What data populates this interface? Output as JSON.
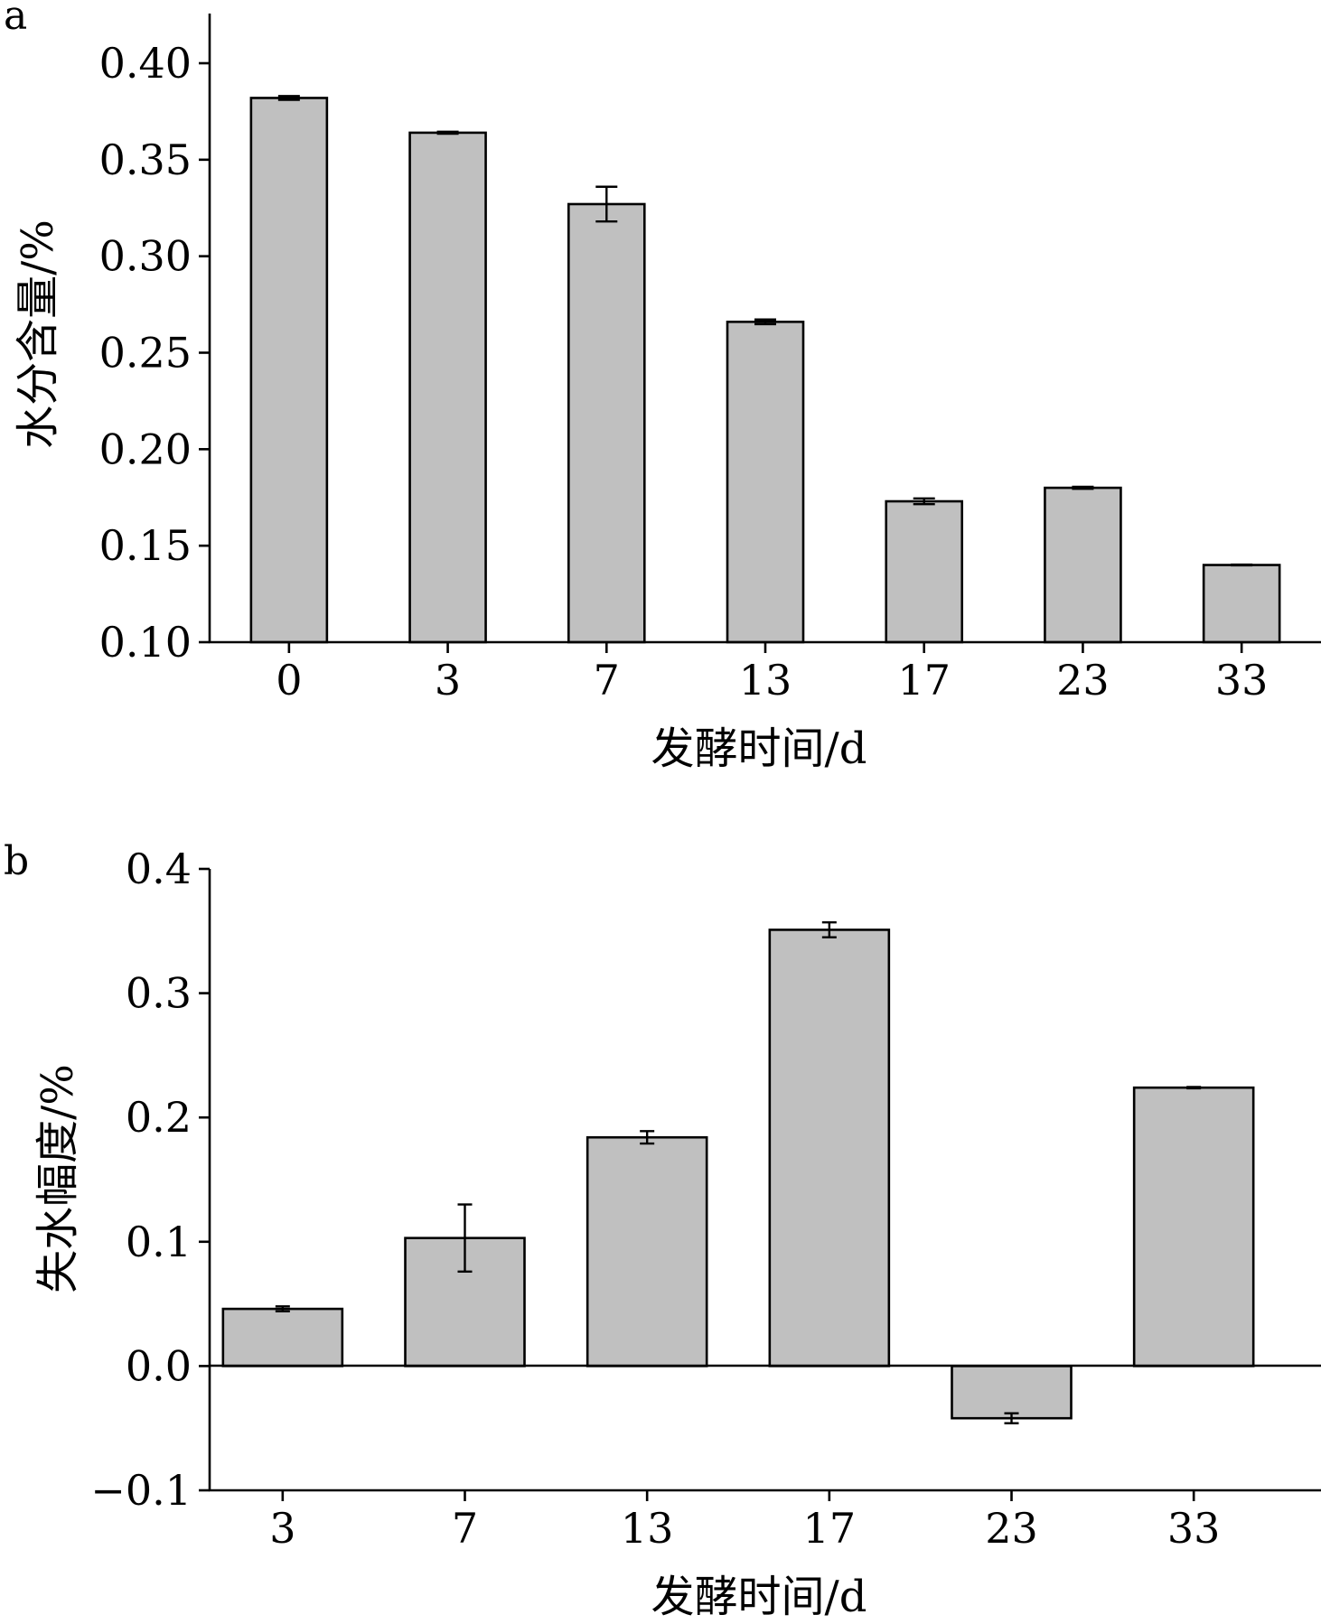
{
  "chart_data": [
    {
      "panel_label": "a",
      "type": "bar",
      "categories": [
        "0",
        "3",
        "7",
        "13",
        "17",
        "23",
        "33"
      ],
      "values": [
        0.382,
        0.364,
        0.327,
        0.266,
        0.173,
        0.18,
        0.14
      ],
      "errors": [
        0.001,
        0.0005,
        0.009,
        0.0012,
        0.0015,
        0.0005,
        0.0002
      ],
      "xlabel": "发酵时间/d",
      "ylabel": "水分含量/%",
      "ylim": [
        0.1,
        0.4
      ],
      "yticks": [
        "0.10",
        "0.15",
        "0.20",
        "0.25",
        "0.30",
        "0.35",
        "0.40"
      ],
      "bar_color": "#c0c0c0",
      "grid": false
    },
    {
      "panel_label": "b",
      "type": "bar",
      "categories": [
        "3",
        "7",
        "13",
        "17",
        "23",
        "33"
      ],
      "values": [
        0.046,
        0.103,
        0.184,
        0.351,
        -0.042,
        0.224
      ],
      "errors": [
        0.002,
        0.027,
        0.005,
        0.006,
        0.004,
        0.0005
      ],
      "xlabel": "发酵时间/d",
      "ylabel": "失水幅度/%",
      "ylim": [
        -0.1,
        0.4
      ],
      "yticks": [
        "-0.1",
        "0.0",
        "0.1",
        "0.2",
        "0.3",
        "0.4"
      ],
      "bar_color": "#c0c0c0",
      "grid": false
    }
  ]
}
